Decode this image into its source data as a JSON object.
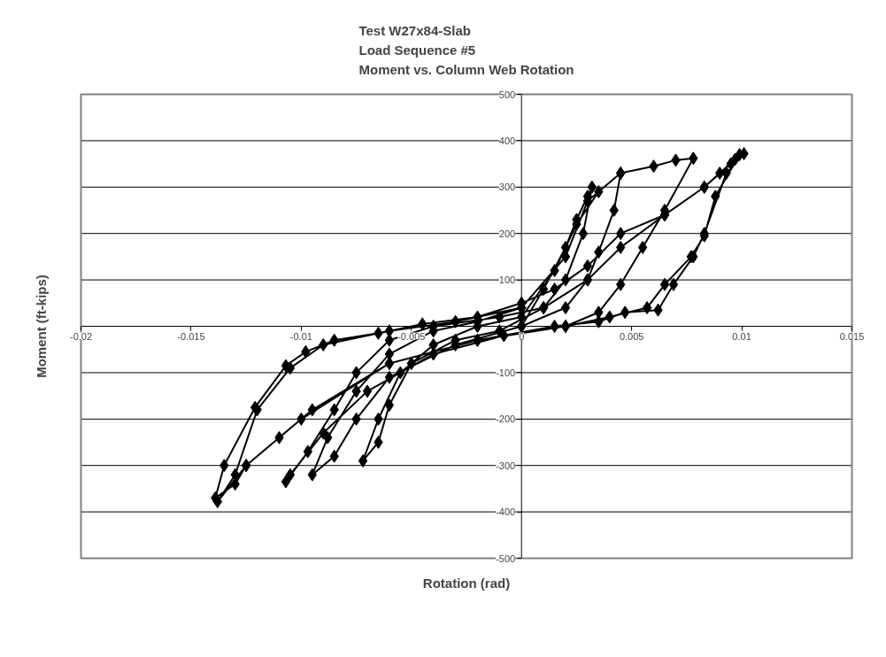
{
  "chart_data": {
    "type": "line",
    "title": "Test W27x84-Slab\nLoad Sequence #5\nMoment vs. Column Web Rotation",
    "xlabel": "Rotation (rad)",
    "ylabel": "Moment (ft-kips)",
    "x": [
      0,
      0.001,
      0.002,
      0.0025,
      0.003,
      0.0032,
      0.0028,
      0.002,
      0.001,
      -0.001,
      -0.003,
      -0.005,
      -0.006,
      -0.0065,
      -0.0072,
      -0.0065,
      -0.0055,
      -0.004,
      -0.002,
      0,
      0.0015,
      0.0025,
      0.0035,
      0.0045,
      0.0042,
      0.0035,
      0.003,
      0.002,
      0,
      -0.003,
      -0.006,
      -0.0075,
      -0.0085,
      -0.0095,
      -0.0088,
      -0.0075,
      -0.006,
      -0.004,
      -0.002,
      0,
      0.002,
      0.003,
      0.0045,
      0.006,
      0.007,
      0.0078,
      0.0065,
      0.0055,
      0.0045,
      0.0035,
      0.002,
      -0.0008,
      -0.004,
      -0.007,
      -0.009,
      -0.0105,
      -0.0107,
      -0.0097,
      -0.0085,
      -0.0075,
      -0.006,
      -0.004,
      -0.001,
      0.001,
      0.003,
      0.0045,
      0.0065,
      0.0083,
      0.009,
      0.0097,
      0.0101,
      0.0093,
      0.0083,
      0.0078,
      0.0069,
      0.0062,
      0.0047,
      0.0035,
      0.0015,
      -0.002,
      -0.006,
      -0.0095,
      -0.011,
      -0.0125,
      -0.013,
      -0.0139,
      -0.0135,
      -0.0121,
      -0.0107,
      -0.0098,
      -0.0085,
      -0.0065,
      -0.0045,
      -0.002,
      0,
      0.0015,
      0.003,
      0.0045,
      0.0065,
      0.0083,
      0.0095,
      0.0099,
      0.0088,
      0.0083,
      0.0077,
      0.0065,
      0.0057,
      0.004,
      0.002,
      -0.002,
      -0.006,
      -0.01,
      -0.0125,
      -0.0138,
      -0.013,
      -0.012,
      -0.0105,
      -0.009,
      -0.006,
      -0.003,
      0
    ],
    "values": [
      0,
      80,
      170,
      230,
      280,
      300,
      200,
      100,
      40,
      -10,
      -30,
      -80,
      -170,
      -250,
      -290,
      -200,
      -100,
      -40,
      0,
      20,
      120,
      220,
      290,
      330,
      250,
      160,
      100,
      40,
      0,
      -40,
      -110,
      -200,
      -280,
      -320,
      -240,
      -140,
      -60,
      -10,
      10,
      40,
      150,
      270,
      330,
      345,
      358,
      362,
      250,
      170,
      90,
      30,
      0,
      -20,
      -60,
      -140,
      -230,
      -320,
      -335,
      -270,
      -180,
      -100,
      -30,
      0,
      20,
      40,
      100,
      170,
      240,
      300,
      330,
      360,
      372,
      330,
      200,
      150,
      90,
      35,
      30,
      10,
      0,
      -30,
      -80,
      -180,
      -240,
      -300,
      -340,
      -370,
      -300,
      -175,
      -85,
      -55,
      -30,
      -15,
      5,
      20,
      50,
      80,
      130,
      200,
      240,
      300,
      350,
      370,
      280,
      195,
      150,
      90,
      40,
      20,
      0,
      -30,
      -80,
      -200,
      -300,
      -378,
      -320,
      -180,
      -90,
      -40,
      -10,
      10,
      40
    ],
    "color": "#000000",
    "marker": "diamond",
    "line_style": "solid",
    "xlim": [
      -0.02,
      0.015
    ],
    "xticks": [
      -0.02,
      -0.015,
      -0.01,
      -0.005,
      0,
      0.005,
      0.01,
      0.015
    ],
    "ylim": [
      -500,
      500
    ],
    "yticks": [
      -500,
      -400,
      -300,
      -200,
      -100,
      {
        "value": 0,
        "label": null
      },
      100,
      200,
      300,
      400,
      500
    ],
    "grid": "y"
  }
}
